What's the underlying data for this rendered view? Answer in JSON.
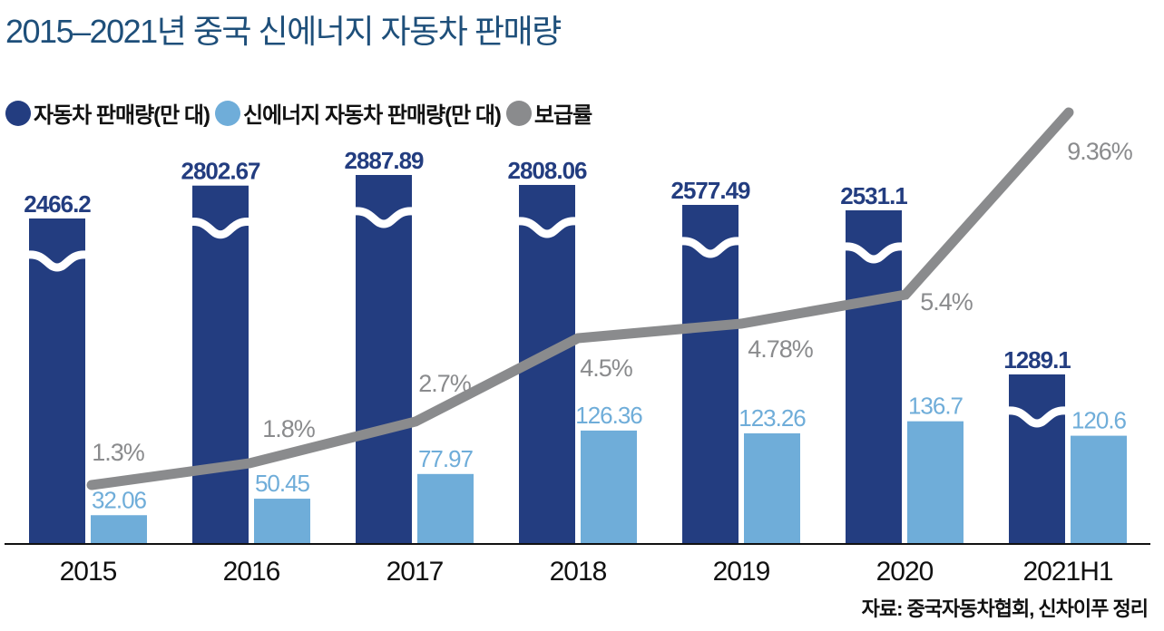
{
  "header": {
    "title": "2015–2021년 중국 신에너지 자동차 판매량"
  },
  "legend": [
    {
      "label": "자동차 판매량(만 대)",
      "color": "#233d80"
    },
    {
      "label": "신에너지 자동차 판매량(만 대)",
      "color": "#6fadd9"
    },
    {
      "label": "보급률",
      "color": "#8a8b8d"
    }
  ],
  "footer": {
    "source": "자료: 중국자동차협회, 신차이푸 정리"
  },
  "chart_data": {
    "type": "bar",
    "title": "2015–2021년 중국 신에너지 자동차 판매량",
    "xlabel": "",
    "ylabel": "",
    "categories": [
      "2015",
      "2016",
      "2017",
      "2018",
      "2019",
      "2020",
      "2021H1"
    ],
    "series": [
      {
        "name": "자동차 판매량(만 대)",
        "type": "bar",
        "color": "#233d80",
        "axis_break": true,
        "values": [
          2466.2,
          2802.67,
          2887.89,
          2808.06,
          2577.49,
          2531.1,
          1289.1
        ],
        "labels": [
          "2466.2",
          "2802.67",
          "2887.89",
          "2808.06",
          "2577.49",
          "2531.1",
          "1289.1"
        ]
      },
      {
        "name": "신에너지 자동차 판매량(만 대)",
        "type": "bar",
        "color": "#6fadd9",
        "values": [
          32.06,
          50.45,
          77.97,
          126.36,
          123.26,
          136.7,
          120.6
        ],
        "labels": [
          "32.06",
          "50.45",
          "77.97",
          "126.36",
          "123.26",
          "136.7",
          "120.6"
        ]
      },
      {
        "name": "보급률",
        "type": "line",
        "color": "#8a8b8d",
        "unit": "%",
        "values": [
          1.3,
          1.8,
          2.7,
          4.5,
          4.78,
          5.4,
          9.36
        ],
        "labels": [
          "1.3%",
          "1.8%",
          "2.7%",
          "4.5%",
          "4.78%",
          "5.4%",
          "9.36%"
        ]
      }
    ],
    "grid": false,
    "legend_position": "top-left"
  }
}
